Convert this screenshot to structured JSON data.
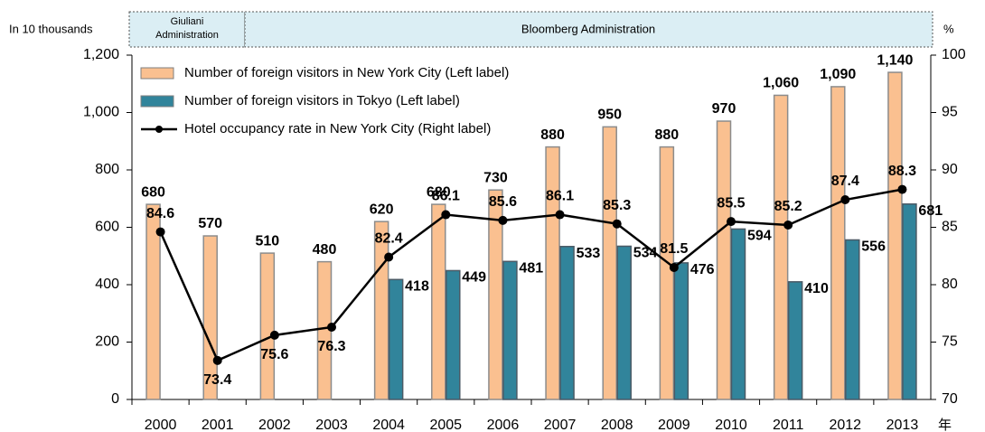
{
  "chart_data": {
    "type": "bar",
    "headers": [
      "Giuliani Administration",
      "Bloomberg Administration"
    ],
    "ylabel": "In 10 thousands",
    "y2label": "%",
    "xlabel": "年",
    "categories": [
      "2000",
      "2001",
      "2002",
      "2003",
      "2004",
      "2005",
      "2006",
      "2007",
      "2008",
      "2009",
      "2010",
      "2011",
      "2012",
      "2013"
    ],
    "series": [
      {
        "name": "Number of foreign visitors in New York City (Left label)",
        "type": "bar",
        "color": "#fac090",
        "label_color": "#e46c0a",
        "values": [
          680,
          570,
          510,
          480,
          620,
          680,
          730,
          880,
          950,
          880,
          970,
          1060,
          1090,
          1140
        ],
        "value_labels": [
          "680",
          "570",
          "510",
          "480",
          "620",
          "680",
          "730",
          "880",
          "950",
          "880",
          "970",
          "1,060",
          "1,090",
          "1,140"
        ]
      },
      {
        "name": "Number of foreign visitors in Tokyo (Left label)",
        "type": "bar",
        "color": "#31849b",
        "label_color": "#31849b",
        "values": [
          null,
          null,
          null,
          null,
          418,
          449,
          481,
          533,
          534,
          476,
          594,
          410,
          556,
          681
        ]
      },
      {
        "name": "Hotel occupancy rate in New York City (Right label)",
        "type": "line",
        "axis": "y2",
        "color": "#000000",
        "label_color": "#000000",
        "values": [
          84.6,
          73.4,
          75.6,
          76.3,
          82.4,
          86.1,
          85.6,
          86.1,
          85.3,
          81.5,
          85.5,
          85.2,
          87.4,
          88.3
        ]
      }
    ],
    "ylim": [
      0,
      1200
    ],
    "yticks": [
      0,
      200,
      400,
      600,
      800,
      {
        "value": 1000,
        "label": "1,000"
      },
      {
        "value": 1200,
        "label": "1,200"
      }
    ],
    "y2lim": [
      70,
      100
    ],
    "y2ticks": [
      70,
      75,
      80,
      85,
      90,
      95,
      100
    ],
    "legend": "top-left"
  }
}
